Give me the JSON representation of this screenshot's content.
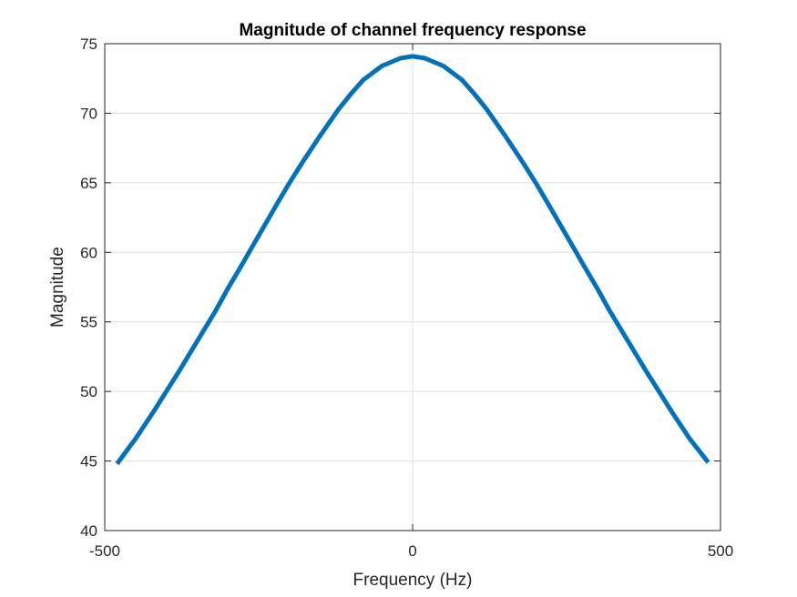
{
  "chart_data": {
    "type": "line",
    "title": "Magnitude of channel frequency response",
    "xlabel": "Frequency (Hz)",
    "ylabel": "Magnitude",
    "xlim": [
      -500,
      500
    ],
    "ylim": [
      40,
      75
    ],
    "xticks": [
      -500,
      0,
      500
    ],
    "xtick_labels": [
      "-500",
      "0",
      "500"
    ],
    "yticks": [
      40,
      45,
      50,
      55,
      60,
      65,
      70,
      75
    ],
    "ytick_labels": [
      "40",
      "45",
      "50",
      "55",
      "60",
      "65",
      "70",
      "75"
    ],
    "grid": true,
    "series": [
      {
        "color": "#0072BD",
        "x": [
          -480,
          -450,
          -420,
          -400,
          -380,
          -350,
          -320,
          -300,
          -280,
          -250,
          -220,
          -200,
          -180,
          -150,
          -120,
          -100,
          -80,
          -50,
          -20,
          0,
          20,
          50,
          80,
          100,
          120,
          150,
          180,
          200,
          220,
          250,
          280,
          300,
          320,
          350,
          380,
          400,
          420,
          450,
          480
        ],
        "y": [
          44.8,
          46.6,
          48.6,
          50.0,
          51.4,
          53.6,
          55.8,
          57.4,
          58.9,
          61.2,
          63.5,
          65.0,
          66.4,
          68.4,
          70.3,
          71.4,
          72.4,
          73.4,
          73.95,
          74.1,
          73.95,
          73.4,
          72.4,
          71.4,
          70.3,
          68.4,
          66.4,
          65.0,
          63.5,
          61.2,
          58.9,
          57.4,
          55.8,
          53.6,
          51.4,
          50.0,
          48.6,
          46.6,
          44.9
        ]
      }
    ]
  }
}
